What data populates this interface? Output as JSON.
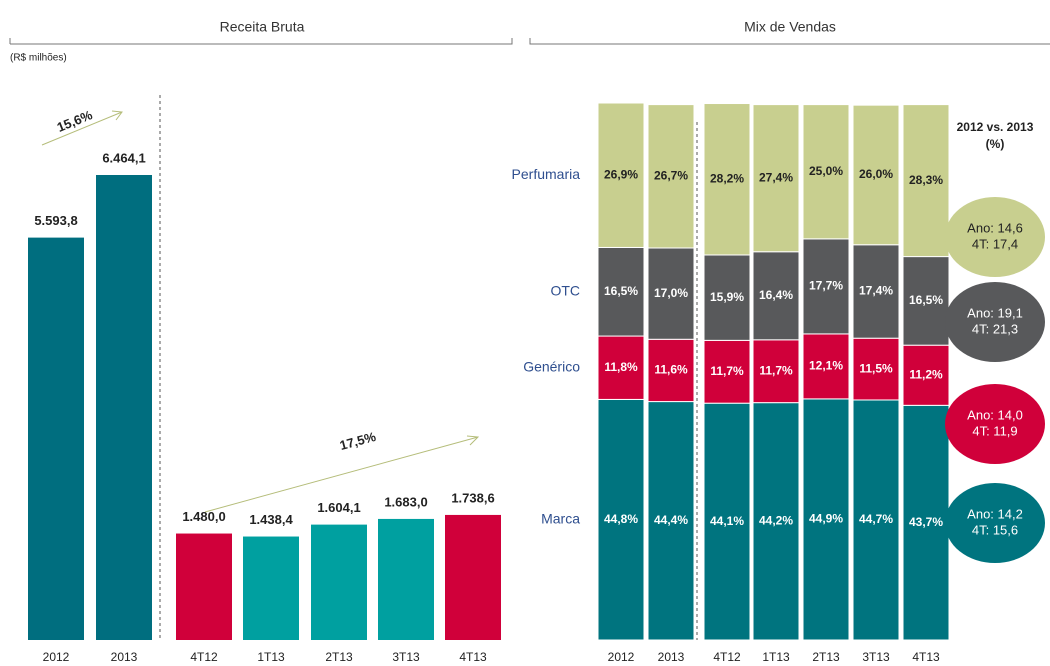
{
  "chart_data": [
    {
      "type": "bar",
      "title": "Receita Bruta",
      "subtitle": "(R$ milhões)",
      "categories": [
        "2012",
        "2013",
        "4T12",
        "1T13",
        "2T13",
        "3T13",
        "4T13"
      ],
      "values": [
        5593.8,
        6464.1,
        1480.0,
        1438.4,
        1604.1,
        1683.0,
        1738.6
      ],
      "value_labels": [
        "5.593,8",
        "6.464,1",
        "1.480,0",
        "1.438,4",
        "1.604,1",
        "1.683,0",
        "1.738,6"
      ],
      "colors": [
        "#006e7f",
        "#006e7f",
        "#d0003a",
        "#00a0a0",
        "#00a0a0",
        "#00a0a0",
        "#d0003a"
      ],
      "annotations": [
        {
          "text": "15,6%"
        },
        {
          "text": "17,5%"
        }
      ]
    },
    {
      "type": "stacked_bar",
      "title": "Mix de Vendas",
      "categories": [
        "2012",
        "2013",
        "4T12",
        "1T13",
        "2T13",
        "3T13",
        "4T13"
      ],
      "series": [
        {
          "name": "Marca",
          "color": "#00747f",
          "values": [
            44.8,
            44.4,
            44.1,
            44.2,
            44.9,
            44.7,
            43.7
          ],
          "value_labels": [
            "44,8%",
            "44,4%",
            "44,1%",
            "44,2%",
            "44,9%",
            "44,7%",
            "43,7%"
          ]
        },
        {
          "name": "Genérico",
          "color": "#d0003a",
          "values": [
            11.8,
            11.6,
            11.7,
            11.7,
            12.1,
            11.5,
            11.2
          ],
          "value_labels": [
            "11,8%",
            "11,6%",
            "11,7%",
            "11,7%",
            "12,1%",
            "11,5%",
            "11,2%"
          ]
        },
        {
          "name": "OTC",
          "color": "#58595b",
          "values": [
            16.5,
            17.0,
            15.9,
            16.4,
            17.7,
            17.4,
            16.5
          ],
          "value_labels": [
            "16,5%",
            "17,0%",
            "15,9%",
            "16,4%",
            "17,7%",
            "17,4%",
            "16,5%"
          ]
        },
        {
          "name": "Perfumaria",
          "color": "#c8cf8f",
          "values": [
            26.9,
            26.7,
            28.2,
            27.4,
            25.0,
            26.0,
            28.3
          ],
          "value_labels": [
            "26,9%",
            "26,7%",
            "28,2%",
            "27,4%",
            "25,0%",
            "26,0%",
            "28,3%"
          ]
        }
      ],
      "comparison": {
        "title": "2012 vs. 2013",
        "unit": "(%)",
        "items": [
          {
            "lines": [
              "Ano: 14,6",
              "4T: 17,4"
            ],
            "color": "#c8cf8f",
            "text_color": "#222"
          },
          {
            "lines": [
              "Ano: 19,1",
              "4T: 21,3"
            ],
            "color": "#58595b",
            "text_color": "#fff"
          },
          {
            "lines": [
              "Ano: 14,0",
              "4T: 11,9"
            ],
            "color": "#d0003a",
            "text_color": "#fff"
          },
          {
            "lines": [
              "Ano: 14,2",
              "4T: 15,6"
            ],
            "color": "#00747f",
            "text_color": "#fff"
          }
        ]
      }
    }
  ]
}
